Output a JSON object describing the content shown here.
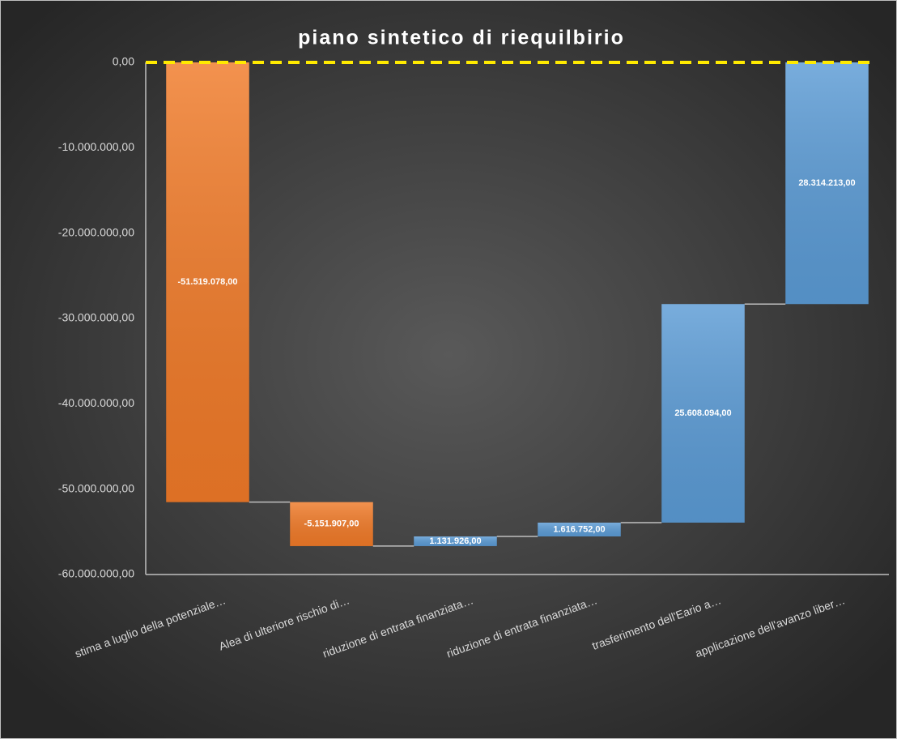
{
  "chart_data": {
    "type": "waterfall",
    "title": "piano sintetico di riequilbirio",
    "categories": [
      "stima a luglio della potenziale…",
      "Alea di ulteriore rischio di…",
      "riduzione di entrata finanziata…",
      "riduzione di entrata finanziata…",
      "trasferimento dell'Eario a…",
      "applicazione dell'avanzo liber…"
    ],
    "values": [
      -51519078,
      -5151907,
      1131926,
      1616752,
      25608094,
      28314213
    ],
    "value_labels": [
      "-51.519.078,00",
      "-5.151.907,00",
      "1.131.926,00",
      "1.616.752,00",
      "25.608.094,00",
      "28.314.213,00"
    ],
    "colors": [
      "#f07a28",
      "#f07a28",
      "#5b9bd5",
      "#5b9bd5",
      "#5b9bd5",
      "#5b9bd5"
    ],
    "ylim": [
      -60000000,
      0
    ],
    "yticks": [
      {
        "value": 0,
        "label": "0,00"
      },
      {
        "value": -10000000,
        "label": "-10.000.000,00"
      },
      {
        "value": -20000000,
        "label": "-20.000.000,00"
      },
      {
        "value": -30000000,
        "label": "-30.000.000,00"
      },
      {
        "value": -40000000,
        "label": "-40.000.000,00"
      },
      {
        "value": -50000000,
        "label": "-50.000.000,00"
      },
      {
        "value": -60000000,
        "label": "-60.000.000,00"
      }
    ],
    "zero_line_color": "#ffea00"
  }
}
